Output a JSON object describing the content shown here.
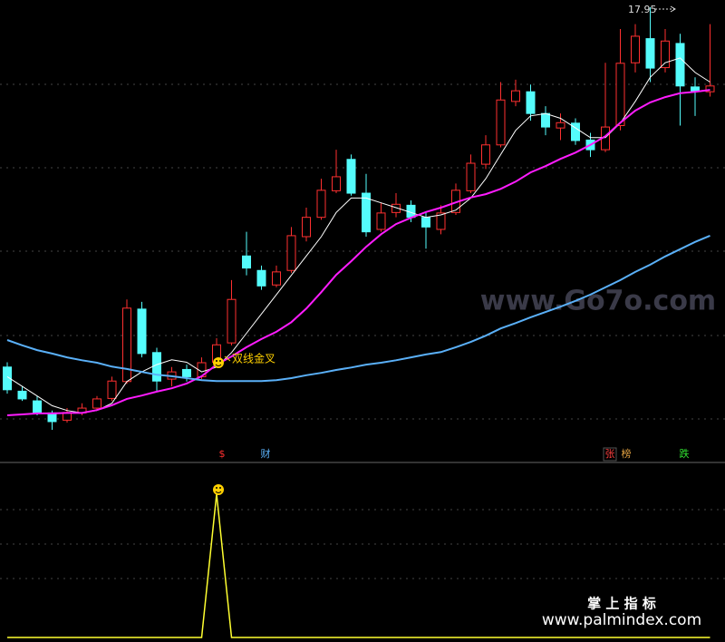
{
  "chart_data": {
    "type": "candlestick",
    "up_color": "#ff3030",
    "down_color": "#54fcfc",
    "ylim": [
      8.9,
      18.1
    ],
    "open": [
      10.5,
      10.0,
      9.8,
      9.55,
      9.4,
      9.55,
      9.65,
      9.85,
      10.2,
      11.7,
      10.8,
      10.25,
      10.45,
      10.3,
      10.6,
      11.0,
      12.8,
      12.5,
      12.2,
      12.5,
      13.2,
      13.6,
      14.15,
      14.8,
      14.1,
      13.35,
      13.7,
      13.85,
      13.6,
      13.35,
      13.7,
      14.15,
      14.7,
      15.1,
      16.0,
      16.2,
      15.75,
      15.45,
      15.55,
      15.2,
      15.0,
      15.5,
      16.8,
      17.3,
      16.7,
      17.2,
      16.3,
      16.2
    ],
    "high": [
      10.6,
      10.1,
      9.9,
      9.6,
      9.65,
      9.75,
      9.9,
      10.3,
      11.9,
      11.85,
      10.9,
      10.5,
      10.55,
      10.7,
      11.1,
      12.3,
      13.3,
      12.6,
      12.6,
      13.4,
      13.8,
      14.4,
      15.0,
      14.9,
      14.5,
      13.9,
      14.1,
      13.95,
      13.7,
      13.85,
      14.3,
      14.9,
      15.3,
      16.4,
      16.45,
      16.35,
      15.9,
      15.75,
      15.65,
      15.35,
      16.8,
      17.5,
      17.6,
      17.95,
      17.5,
      17.4,
      16.5,
      17.6
    ],
    "low": [
      9.95,
      9.8,
      9.5,
      9.2,
      9.35,
      9.5,
      9.6,
      9.8,
      10.15,
      10.7,
      10.0,
      10.1,
      10.2,
      10.25,
      10.55,
      10.95,
      12.4,
      12.1,
      12.15,
      12.45,
      13.1,
      13.55,
      14.1,
      14.05,
      13.2,
      13.3,
      13.6,
      13.5,
      12.95,
      13.25,
      13.65,
      14.1,
      14.6,
      15.05,
      15.9,
      15.6,
      15.3,
      15.2,
      15.1,
      14.85,
      14.95,
      15.4,
      16.6,
      16.4,
      16.6,
      15.5,
      15.7,
      16.1
    ],
    "close": [
      10.03,
      9.84,
      9.56,
      9.37,
      9.56,
      9.65,
      9.84,
      10.21,
      11.72,
      10.78,
      10.21,
      10.4,
      10.3,
      10.59,
      10.96,
      11.9,
      12.55,
      12.18,
      12.47,
      13.22,
      13.6,
      14.16,
      14.44,
      14.1,
      13.3,
      13.69,
      13.87,
      13.6,
      13.4,
      13.69,
      14.16,
      14.72,
      15.1,
      16.03,
      16.22,
      15.75,
      15.47,
      15.56,
      15.19,
      15.0,
      15.47,
      16.79,
      17.35,
      16.69,
      17.25,
      16.32,
      16.22,
      16.32
    ],
    "lines": [
      {
        "color": "#ffffff",
        "values": [
          10.3,
          10.1,
          9.9,
          9.7,
          9.6,
          9.55,
          9.6,
          9.75,
          10.2,
          10.4,
          10.55,
          10.65,
          10.6,
          10.4,
          10.5,
          10.8,
          11.2,
          11.6,
          12.0,
          12.4,
          12.8,
          13.2,
          13.7,
          14.0,
          14.0,
          13.9,
          13.8,
          13.7,
          13.6,
          13.65,
          13.75,
          14.0,
          14.4,
          14.9,
          15.4,
          15.7,
          15.75,
          15.65,
          15.45,
          15.25,
          15.25,
          15.55,
          16.0,
          16.5,
          16.8,
          16.9,
          16.6,
          16.4
        ]
      },
      {
        "color": "#ff1cff",
        "values": [
          9.5,
          9.52,
          9.54,
          9.54,
          9.55,
          9.55,
          9.61,
          9.71,
          9.84,
          9.91,
          9.99,
          10.06,
          10.16,
          10.31,
          10.55,
          10.72,
          10.91,
          11.08,
          11.23,
          11.43,
          11.71,
          12.05,
          12.41,
          12.69,
          12.99,
          13.25,
          13.46,
          13.59,
          13.71,
          13.8,
          13.91,
          14.01,
          14.08,
          14.19,
          14.34,
          14.53,
          14.66,
          14.81,
          14.94,
          15.1,
          15.28,
          15.56,
          15.81,
          15.98,
          16.09,
          16.17,
          16.2,
          16.24
        ]
      },
      {
        "color": "#5ab0f8",
        "values": [
          11.06,
          10.95,
          10.85,
          10.78,
          10.7,
          10.64,
          10.59,
          10.51,
          10.46,
          10.4,
          10.34,
          10.31,
          10.27,
          10.23,
          10.21,
          10.21,
          10.21,
          10.21,
          10.23,
          10.27,
          10.33,
          10.38,
          10.44,
          10.49,
          10.55,
          10.59,
          10.64,
          10.7,
          10.76,
          10.81,
          10.91,
          11.02,
          11.15,
          11.3,
          11.41,
          11.53,
          11.64,
          11.75,
          11.87,
          12.0,
          12.15,
          12.3,
          12.47,
          12.62,
          12.79,
          12.94,
          13.09,
          13.22
        ]
      }
    ],
    "annotation": "双线金叉",
    "markers": [
      {
        "text": "$",
        "color": "#ff3030"
      },
      {
        "text": "财",
        "color": "#5ab0f8"
      },
      {
        "text": "张",
        "color": "#ff4040"
      },
      {
        "text": "榜",
        "color": "#e0a040"
      },
      {
        "text": "跌",
        "color": "#30e030"
      }
    ],
    "indicator": {
      "color": "#ffff30",
      "ylim": [
        0,
        1.2
      ],
      "values": [
        0,
        0,
        0,
        0,
        0,
        0,
        0,
        0,
        0,
        0,
        0,
        0,
        0,
        0,
        1,
        0,
        0,
        0,
        0,
        0,
        0,
        0,
        0,
        0,
        0,
        0,
        0,
        0,
        0,
        0,
        0,
        0,
        0,
        0,
        0,
        0,
        0,
        0,
        0,
        0,
        0,
        0,
        0,
        0,
        0,
        0,
        0,
        0
      ]
    },
    "watermark": "www.Go7o.com",
    "footer_title": "掌 上 指 标",
    "footer_url": "www.palmindex.com"
  }
}
